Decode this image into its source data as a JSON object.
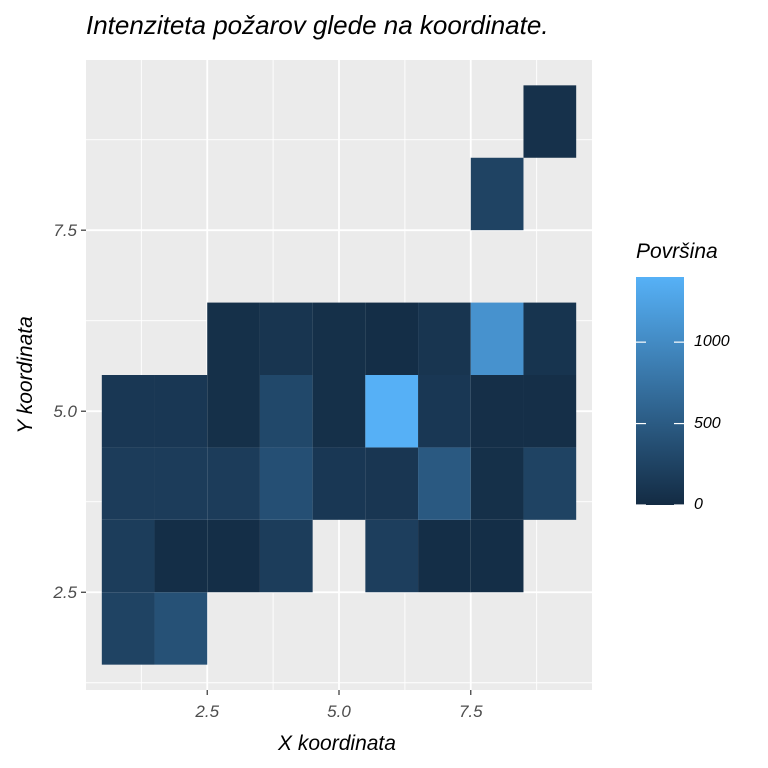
{
  "chart_data": {
    "type": "heatmap",
    "title": "Intenziteta požarov glede na koordinate.",
    "xlabel": "X koordinata",
    "ylabel": "Y koordinata",
    "xlim": [
      0.5,
      9.5
    ],
    "ylim": [
      1.5,
      9.5
    ],
    "x_ticks": [
      2.5,
      5.0,
      7.5
    ],
    "x_tick_labels": [
      "2.5",
      "5.0",
      "7.5"
    ],
    "y_ticks": [
      2.5,
      5.0,
      7.5
    ],
    "y_tick_labels": [
      "2.5",
      "5.0",
      "7.5"
    ],
    "grid": true,
    "legend": {
      "title": "Površina",
      "placement": "right",
      "min": 0,
      "max": 1400,
      "breaks": [
        0,
        500,
        1000
      ],
      "break_labels": [
        "0",
        "500",
        "1000"
      ],
      "color_low": "#132B43",
      "color_high": "#56B1F7"
    },
    "cells": [
      {
        "x": 1,
        "y": 2,
        "value": 250
      },
      {
        "x": 2,
        "y": 2,
        "value": 400
      },
      {
        "x": 1,
        "y": 3,
        "value": 190
      },
      {
        "x": 2,
        "y": 3,
        "value": 30
      },
      {
        "x": 3,
        "y": 3,
        "value": 30
      },
      {
        "x": 4,
        "y": 3,
        "value": 190
      },
      {
        "x": 6,
        "y": 3,
        "value": 200
      },
      {
        "x": 7,
        "y": 3,
        "value": 30
      },
      {
        "x": 8,
        "y": 3,
        "value": 30
      },
      {
        "x": 1,
        "y": 4,
        "value": 180
      },
      {
        "x": 2,
        "y": 4,
        "value": 180
      },
      {
        "x": 3,
        "y": 4,
        "value": 180
      },
      {
        "x": 4,
        "y": 4,
        "value": 380
      },
      {
        "x": 5,
        "y": 4,
        "value": 130
      },
      {
        "x": 6,
        "y": 4,
        "value": 120
      },
      {
        "x": 7,
        "y": 4,
        "value": 480
      },
      {
        "x": 8,
        "y": 4,
        "value": 50
      },
      {
        "x": 9,
        "y": 4,
        "value": 250
      },
      {
        "x": 1,
        "y": 5,
        "value": 130
      },
      {
        "x": 2,
        "y": 5,
        "value": 130
      },
      {
        "x": 3,
        "y": 5,
        "value": 50
      },
      {
        "x": 4,
        "y": 5,
        "value": 300
      },
      {
        "x": 5,
        "y": 5,
        "value": 50
      },
      {
        "x": 6,
        "y": 5,
        "value": 1390
      },
      {
        "x": 7,
        "y": 5,
        "value": 130
      },
      {
        "x": 8,
        "y": 5,
        "value": 40
      },
      {
        "x": 9,
        "y": 5,
        "value": 40
      },
      {
        "x": 3,
        "y": 6,
        "value": 50
      },
      {
        "x": 4,
        "y": 6,
        "value": 100
      },
      {
        "x": 5,
        "y": 6,
        "value": 50
      },
      {
        "x": 6,
        "y": 6,
        "value": 30
      },
      {
        "x": 7,
        "y": 6,
        "value": 100
      },
      {
        "x": 8,
        "y": 6,
        "value": 1080
      },
      {
        "x": 9,
        "y": 6,
        "value": 90
      },
      {
        "x": 8,
        "y": 8,
        "value": 250
      },
      {
        "x": 9,
        "y": 9,
        "value": 60
      }
    ]
  }
}
